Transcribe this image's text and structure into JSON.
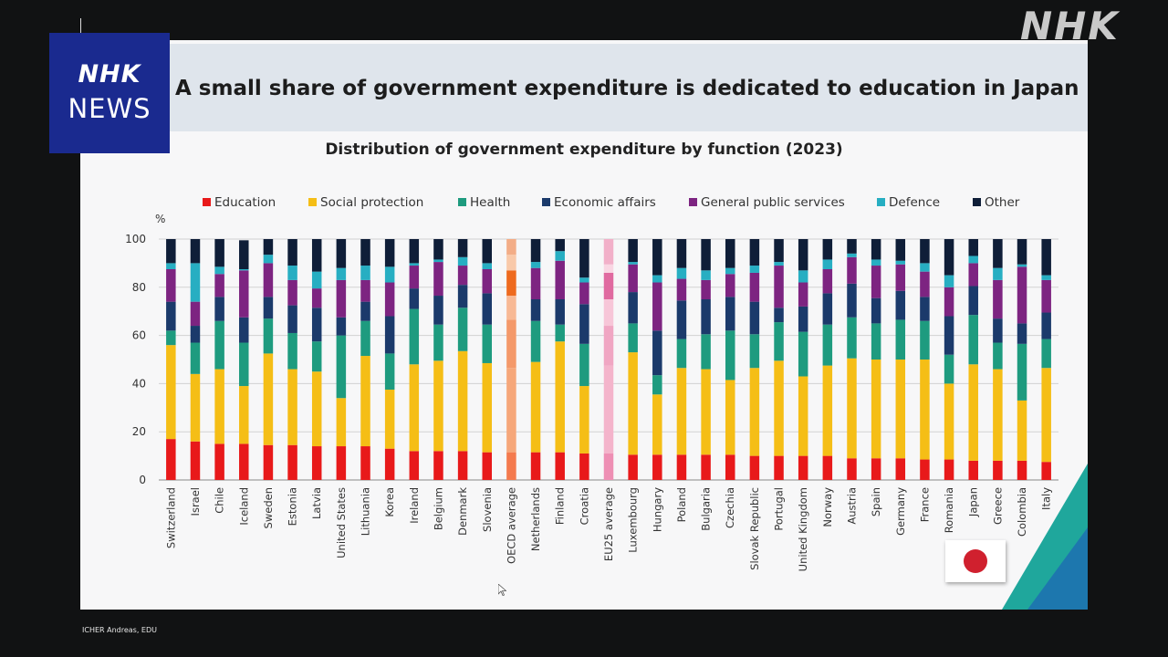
{
  "broadcast": {
    "badge_line1": "NHK",
    "badge_line2": "NEWS",
    "watermark": "NHK",
    "credit": "ICHER Andreas, EDU"
  },
  "slide": {
    "title": "A small share of government expenditure is dedicated to education in Japan"
  },
  "colors": {
    "Education": "#e8191a",
    "Social protection": "#f5be16",
    "Health": "#1e9b7f",
    "Economic affairs": "#1b3a6b",
    "General public services": "#7d2481",
    "Defence": "#27aec2",
    "Other": "#0f1e38",
    "accent_teal": "#1fa79c",
    "accent_blue": "#1d6fb2",
    "japan_flag_red": "#d0202e"
  },
  "chart_data": {
    "type": "bar",
    "stacked": true,
    "title": "Distribution of government expenditure by function (2023)",
    "xlabel": "",
    "ylabel": "%",
    "ylim": [
      0,
      100
    ],
    "yticks": [
      0,
      20,
      40,
      60,
      80,
      100
    ],
    "grid": true,
    "legend_position": "top",
    "highlighted_categories": [
      "OECD average",
      "EU25 average"
    ],
    "categories": [
      "Switzerland",
      "Israel",
      "Chile",
      "Iceland",
      "Sweden",
      "Estonia",
      "Latvia",
      "United States",
      "Lithuania",
      "Korea",
      "Ireland",
      "Belgium",
      "Denmark",
      "Slovenia",
      "OECD average",
      "Netherlands",
      "Finland",
      "Croatia",
      "EU25 average",
      "Luxembourg",
      "Hungary",
      "Poland",
      "Bulgaria",
      "Czechia",
      "Slovak Republic",
      "Portugal",
      "United Kingdom",
      "Norway",
      "Austria",
      "Spain",
      "Germany",
      "France",
      "Romania",
      "Japan",
      "Greece",
      "Colombia",
      "Italy"
    ],
    "series": [
      {
        "name": "Education",
        "values": [
          17,
          16,
          15,
          15,
          14.5,
          14.5,
          14,
          14,
          14,
          13,
          12,
          12,
          12,
          11.5,
          11.5,
          11.5,
          11.5,
          11,
          11,
          10.5,
          10.5,
          10.5,
          10.5,
          10.5,
          10,
          10,
          10,
          10,
          9,
          9,
          9,
          8.5,
          8.5,
          8,
          8,
          8,
          7.5
        ]
      },
      {
        "name": "Social protection",
        "values": [
          39,
          28,
          31,
          24,
          38,
          31.5,
          31,
          20,
          37.5,
          24.5,
          36,
          37.5,
          41.5,
          37,
          35,
          37.5,
          46,
          28,
          36.5,
          42.5,
          25,
          36,
          35.5,
          31,
          36.5,
          39.5,
          33,
          37.5,
          41.5,
          41,
          41,
          41.5,
          31.5,
          40,
          38,
          25,
          39
        ]
      },
      {
        "name": "Health",
        "values": [
          6,
          13,
          20,
          18,
          14.5,
          15,
          12.5,
          26,
          14.5,
          15,
          23,
          15,
          18,
          16,
          20,
          17,
          7,
          17.5,
          16.5,
          12,
          8,
          12,
          14.5,
          20.5,
          14,
          16,
          18.5,
          17,
          17,
          15,
          16.5,
          16,
          12,
          20.5,
          11,
          23.5,
          12
        ]
      },
      {
        "name": "Economic affairs",
        "values": [
          12,
          7,
          10,
          10.5,
          9,
          11.5,
          14,
          7.5,
          8,
          15.5,
          8.5,
          12,
          9.5,
          13,
          10,
          9,
          10.5,
          16.5,
          11,
          13,
          18.5,
          16,
          14.5,
          14,
          13.5,
          6,
          10.5,
          13,
          14,
          10.5,
          12,
          10,
          16,
          12,
          10,
          8.5,
          11
        ]
      },
      {
        "name": "General public services",
        "values": [
          13.5,
          10,
          9.5,
          19.5,
          14,
          10.5,
          8,
          15.5,
          9,
          14,
          9.5,
          14,
          8,
          10,
          10.5,
          13,
          16,
          9,
          11,
          11.5,
          20,
          9,
          8,
          9.5,
          12,
          17.5,
          10,
          10,
          11,
          13.5,
          11,
          10.5,
          12,
          9.5,
          16,
          23.5,
          13.5
        ]
      },
      {
        "name": "Defence",
        "values": [
          2.5,
          16,
          3,
          0.5,
          3.5,
          6,
          7,
          5,
          6,
          6.5,
          1,
          1,
          3.5,
          2.5,
          6.5,
          2.5,
          4,
          2,
          3.5,
          1,
          3,
          4.5,
          4,
          2.5,
          3,
          1.5,
          5,
          4,
          1.5,
          2.5,
          1.5,
          3.5,
          5,
          3,
          5,
          1,
          2
        ]
      },
      {
        "name": "Other",
        "values": [
          10,
          10,
          11.5,
          12,
          6.5,
          11,
          13.5,
          12,
          11,
          11.5,
          10,
          8.5,
          7.5,
          10,
          6.5,
          9.5,
          5,
          16,
          10.5,
          9.5,
          15,
          12,
          13,
          12,
          11,
          9.5,
          13,
          8.5,
          6,
          8.5,
          9,
          10,
          15,
          7,
          12,
          10.5,
          15
        ]
      }
    ]
  }
}
